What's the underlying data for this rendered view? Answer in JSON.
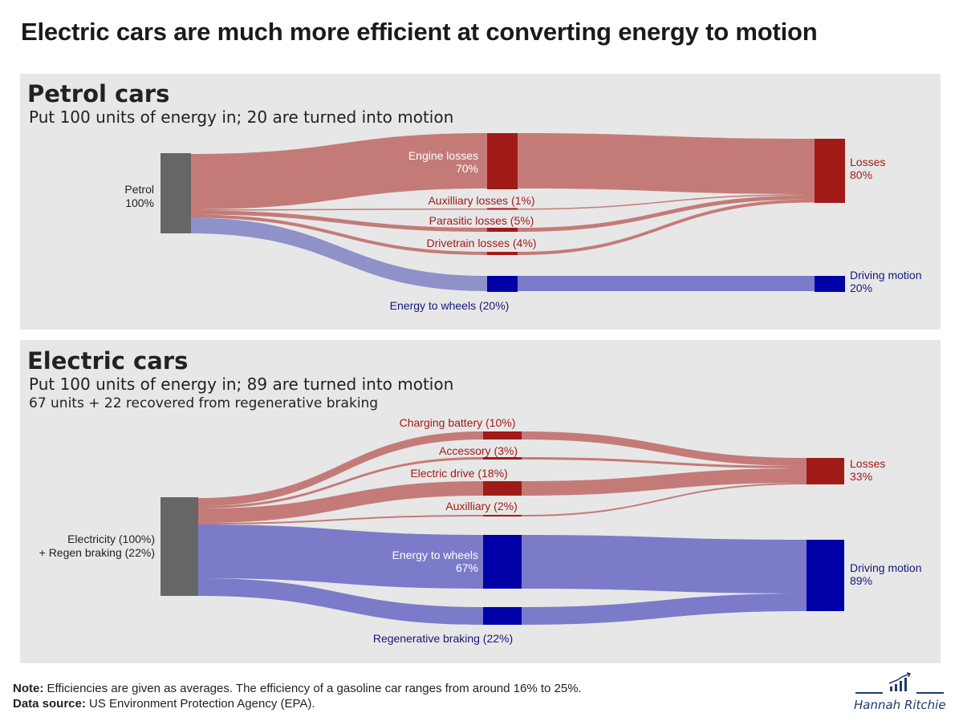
{
  "title": "Electric cars are much more efficient at converting energy to motion",
  "petrol": {
    "heading": "Petrol cars",
    "subtitle": "Put 100 units of energy in; 20 are turned into motion",
    "source": {
      "label": "Petrol",
      "value": "100%"
    },
    "engine_losses": {
      "label": "Engine losses",
      "value": "70%"
    },
    "auxiliary_losses": "Auxilliary losses (1%)",
    "parasitic_losses": "Parasitic losses (5%)",
    "drivetrain_losses": "Drivetrain losses (4%)",
    "energy_to_wheels": "Energy to wheels (20%)",
    "losses": {
      "label": "Losses",
      "value": "80%"
    },
    "driving_motion": {
      "label": "Driving motion",
      "value": "20%"
    }
  },
  "electric": {
    "heading": "Electric cars",
    "subtitle": "Put 100 units of energy in; 89 are turned into motion",
    "subtitle2": "67 units + 22 recovered from regenerative braking",
    "source": {
      "label": "Electricity (100%)",
      "label2": "+ Regen braking (22%)"
    },
    "charging_battery": "Charging battery (10%)",
    "accessory": "Accessory (3%)",
    "electric_drive": "Electric drive (18%)",
    "auxiliary": "Auxilliary (2%)",
    "energy_to_wheels": {
      "label": "Energy to wheels",
      "value": "67%"
    },
    "regenerative_braking": "Regenerative braking (22%)",
    "losses": {
      "label": "Losses",
      "value": "33%"
    },
    "driving_motion": {
      "label": "Driving motion",
      "value": "89%"
    }
  },
  "footer": {
    "note_label": "Note:",
    "note_text": "Efficiencies are given as averages. The efficiency of a gasoline car ranges from around 16% to 25%.",
    "source_label": "Data source:",
    "source_text": "US Environment Protection Agency (EPA)."
  },
  "author": "Hannah Ritchie",
  "colors": {
    "source_node": "#666666",
    "loss_node": "#a01b18",
    "loss_flow": "#c47b78",
    "motion_node": "#0000a8",
    "motion_flow": "#7b7bca",
    "panel_bg": "#e7e7e7"
  },
  "chart_data": [
    {
      "type": "sankey",
      "title": "Petrol cars",
      "units": "percent of energy input",
      "nodes": [
        "Petrol",
        "Engine losses",
        "Auxilliary losses",
        "Parasitic losses",
        "Drivetrain losses",
        "Energy to wheels",
        "Losses",
        "Driving motion"
      ],
      "links": [
        {
          "source": "Petrol",
          "target": "Engine losses",
          "value": 70
        },
        {
          "source": "Petrol",
          "target": "Auxilliary losses",
          "value": 1
        },
        {
          "source": "Petrol",
          "target": "Parasitic losses",
          "value": 5
        },
        {
          "source": "Petrol",
          "target": "Drivetrain losses",
          "value": 4
        },
        {
          "source": "Petrol",
          "target": "Energy to wheels",
          "value": 20
        },
        {
          "source": "Engine losses",
          "target": "Losses",
          "value": 70
        },
        {
          "source": "Auxilliary losses",
          "target": "Losses",
          "value": 1
        },
        {
          "source": "Parasitic losses",
          "target": "Losses",
          "value": 5
        },
        {
          "source": "Drivetrain losses",
          "target": "Losses",
          "value": 4
        },
        {
          "source": "Energy to wheels",
          "target": "Driving motion",
          "value": 20
        }
      ]
    },
    {
      "type": "sankey",
      "title": "Electric cars",
      "units": "percent of energy input",
      "nodes": [
        "Electricity + Regen braking",
        "Charging battery",
        "Accessory",
        "Electric drive",
        "Auxilliary",
        "Energy to wheels",
        "Regenerative braking",
        "Losses",
        "Driving motion"
      ],
      "links": [
        {
          "source": "Electricity + Regen braking",
          "target": "Charging battery",
          "value": 10
        },
        {
          "source": "Electricity + Regen braking",
          "target": "Accessory",
          "value": 3
        },
        {
          "source": "Electricity + Regen braking",
          "target": "Electric drive",
          "value": 18
        },
        {
          "source": "Electricity + Regen braking",
          "target": "Auxilliary",
          "value": 2
        },
        {
          "source": "Electricity + Regen braking",
          "target": "Energy to wheels",
          "value": 67
        },
        {
          "source": "Electricity + Regen braking",
          "target": "Regenerative braking",
          "value": 22
        },
        {
          "source": "Charging battery",
          "target": "Losses",
          "value": 10
        },
        {
          "source": "Accessory",
          "target": "Losses",
          "value": 3
        },
        {
          "source": "Electric drive",
          "target": "Losses",
          "value": 18
        },
        {
          "source": "Auxilliary",
          "target": "Losses",
          "value": 2
        },
        {
          "source": "Energy to wheels",
          "target": "Driving motion",
          "value": 67
        },
        {
          "source": "Regenerative braking",
          "target": "Driving motion",
          "value": 22
        }
      ]
    }
  ]
}
